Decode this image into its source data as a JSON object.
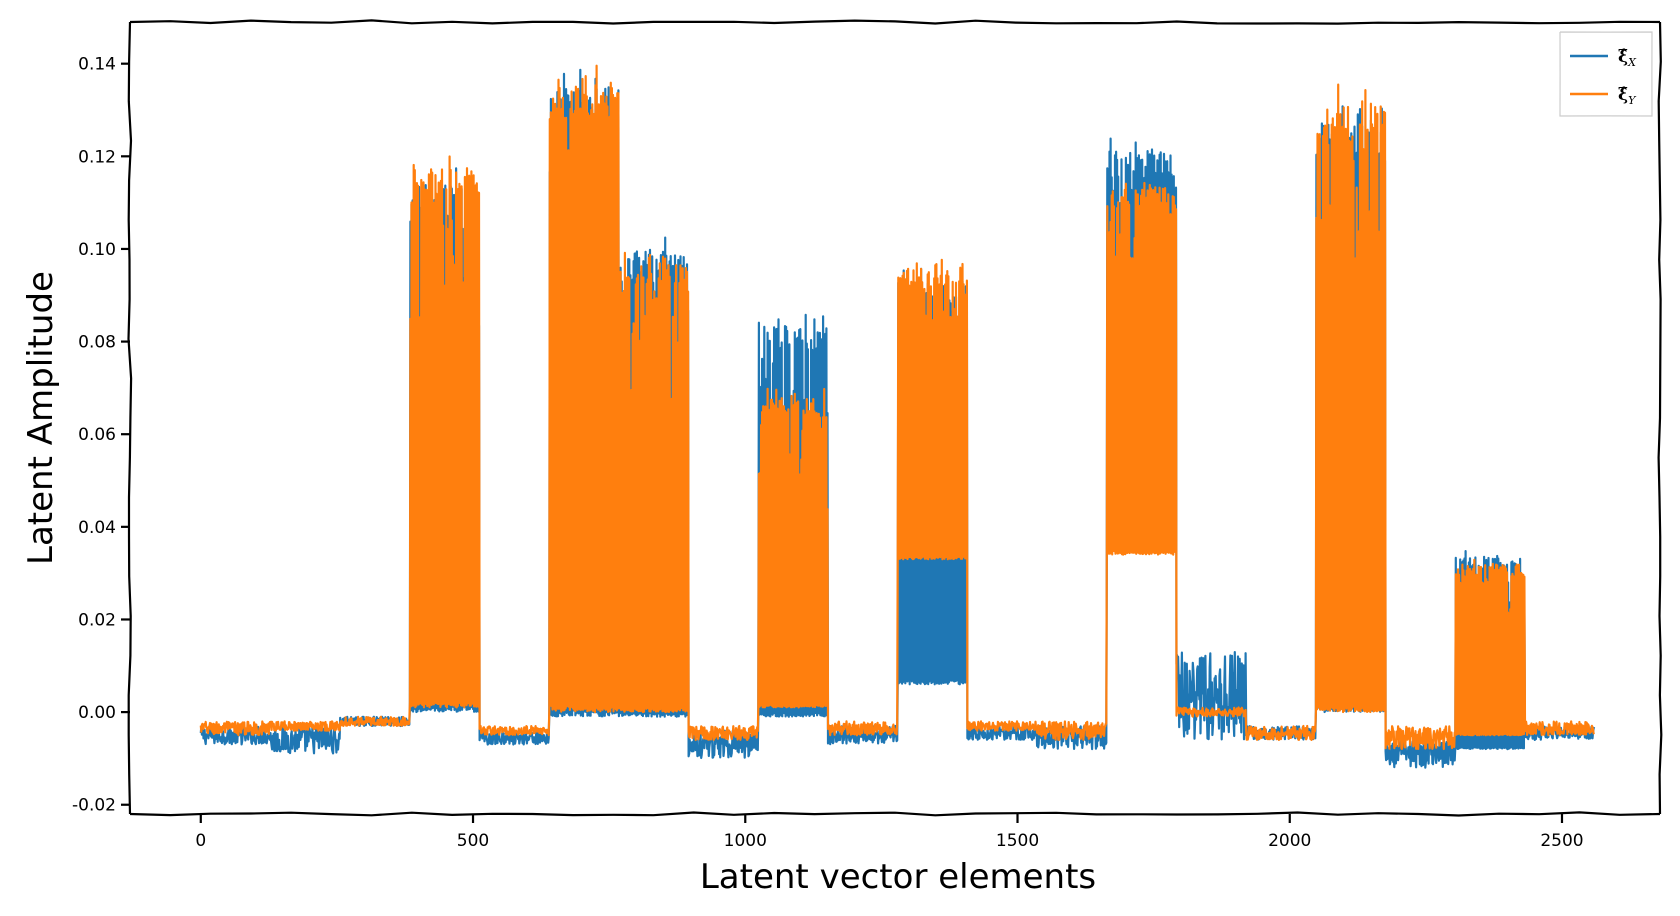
{
  "chart_data": {
    "type": "line",
    "title": "",
    "xlabel": "Latent vector elements",
    "ylabel": "Latent Amplitude",
    "xlim": [
      -130,
      2680
    ],
    "ylim": [
      -0.022,
      0.149
    ],
    "x_ticks": [
      0,
      500,
      1000,
      1500,
      2000,
      2500
    ],
    "x_tick_labels": [
      "0",
      "500",
      "1000",
      "1500",
      "2000",
      "2500"
    ],
    "y_ticks": [
      -0.02,
      0.0,
      0.02,
      0.04,
      0.06,
      0.08,
      0.1,
      0.12,
      0.14
    ],
    "y_tick_labels": [
      "-0.02",
      "0.00",
      "0.02",
      "0.04",
      "0.06",
      "0.08",
      "0.10",
      "0.12",
      "0.14"
    ],
    "grid": false,
    "legend_position": "top-right",
    "n_points": 2560,
    "series": [
      {
        "name": "ξ̂",
        "subscript": "X",
        "color": "#1f77b4",
        "segments": [
          {
            "x": [
              0,
              128
            ],
            "low": -0.007,
            "high": -0.003
          },
          {
            "x": [
              128,
              256
            ],
            "low": -0.009,
            "high": -0.003
          },
          {
            "x": [
              256,
              384
            ],
            "low": -0.003,
            "high": -0.001
          },
          {
            "x": [
              384,
              512
            ],
            "low": 0.0,
            "high": 0.118
          },
          {
            "x": [
              512,
              640
            ],
            "low": -0.007,
            "high": -0.004
          },
          {
            "x": [
              640,
              768
            ],
            "low": -0.001,
            "high": 0.14
          },
          {
            "x": [
              768,
              896
            ],
            "low": -0.001,
            "high": 0.103
          },
          {
            "x": [
              896,
              1024
            ],
            "low": -0.01,
            "high": -0.004
          },
          {
            "x": [
              1024,
              1152
            ],
            "low": -0.001,
            "high": 0.086
          },
          {
            "x": [
              1152,
              1280
            ],
            "low": -0.007,
            "high": -0.003
          },
          {
            "x": [
              1280,
              1408
            ],
            "low": 0.006,
            "high": 0.096
          },
          {
            "x": [
              1408,
              1536
            ],
            "low": -0.006,
            "high": -0.003
          },
          {
            "x": [
              1536,
              1664
            ],
            "low": -0.008,
            "high": -0.003
          },
          {
            "x": [
              1664,
              1792
            ],
            "low": 0.035,
            "high": 0.124
          },
          {
            "x": [
              1792,
              1920
            ],
            "low": -0.006,
            "high": 0.013
          },
          {
            "x": [
              1920,
              2048
            ],
            "low": -0.006,
            "high": -0.003
          },
          {
            "x": [
              2048,
              2176
            ],
            "low": 0.0,
            "high": 0.132
          },
          {
            "x": [
              2176,
              2304
            ],
            "low": -0.012,
            "high": -0.006
          },
          {
            "x": [
              2304,
              2432
            ],
            "low": -0.008,
            "high": 0.035
          },
          {
            "x": [
              2432,
              2560
            ],
            "low": -0.006,
            "high": -0.003
          }
        ]
      },
      {
        "name": "ξ̂",
        "subscript": "Y",
        "color": "#ff7f0e",
        "segments": [
          {
            "x": [
              0,
              128
            ],
            "low": -0.005,
            "high": -0.002
          },
          {
            "x": [
              128,
              256
            ],
            "low": -0.004,
            "high": -0.002
          },
          {
            "x": [
              256,
              384
            ],
            "low": -0.003,
            "high": -0.001
          },
          {
            "x": [
              384,
              512
            ],
            "low": 0.001,
            "high": 0.122
          },
          {
            "x": [
              512,
              640
            ],
            "low": -0.005,
            "high": -0.003
          },
          {
            "x": [
              640,
              768
            ],
            "low": 0.0,
            "high": 0.141
          },
          {
            "x": [
              768,
              896
            ],
            "low": 0.0,
            "high": 0.1
          },
          {
            "x": [
              896,
              1024
            ],
            "low": -0.006,
            "high": -0.003
          },
          {
            "x": [
              1024,
              1152
            ],
            "low": 0.001,
            "high": 0.07
          },
          {
            "x": [
              1152,
              1280
            ],
            "low": -0.005,
            "high": -0.002
          },
          {
            "x": [
              1280,
              1408
            ],
            "low": 0.033,
            "high": 0.098
          },
          {
            "x": [
              1408,
              1536
            ],
            "low": -0.004,
            "high": -0.002
          },
          {
            "x": [
              1536,
              1664
            ],
            "low": -0.006,
            "high": -0.002
          },
          {
            "x": [
              1664,
              1792
            ],
            "low": 0.034,
            "high": 0.116
          },
          {
            "x": [
              1792,
              1920
            ],
            "low": -0.001,
            "high": 0.001
          },
          {
            "x": [
              1920,
              2048
            ],
            "low": -0.006,
            "high": -0.003
          },
          {
            "x": [
              2048,
              2176
            ],
            "low": 0.0,
            "high": 0.136
          },
          {
            "x": [
              2176,
              2304
            ],
            "low": -0.008,
            "high": -0.003
          },
          {
            "x": [
              2304,
              2432
            ],
            "low": -0.005,
            "high": 0.033
          },
          {
            "x": [
              2432,
              2560
            ],
            "low": -0.005,
            "high": -0.002
          }
        ]
      }
    ]
  }
}
